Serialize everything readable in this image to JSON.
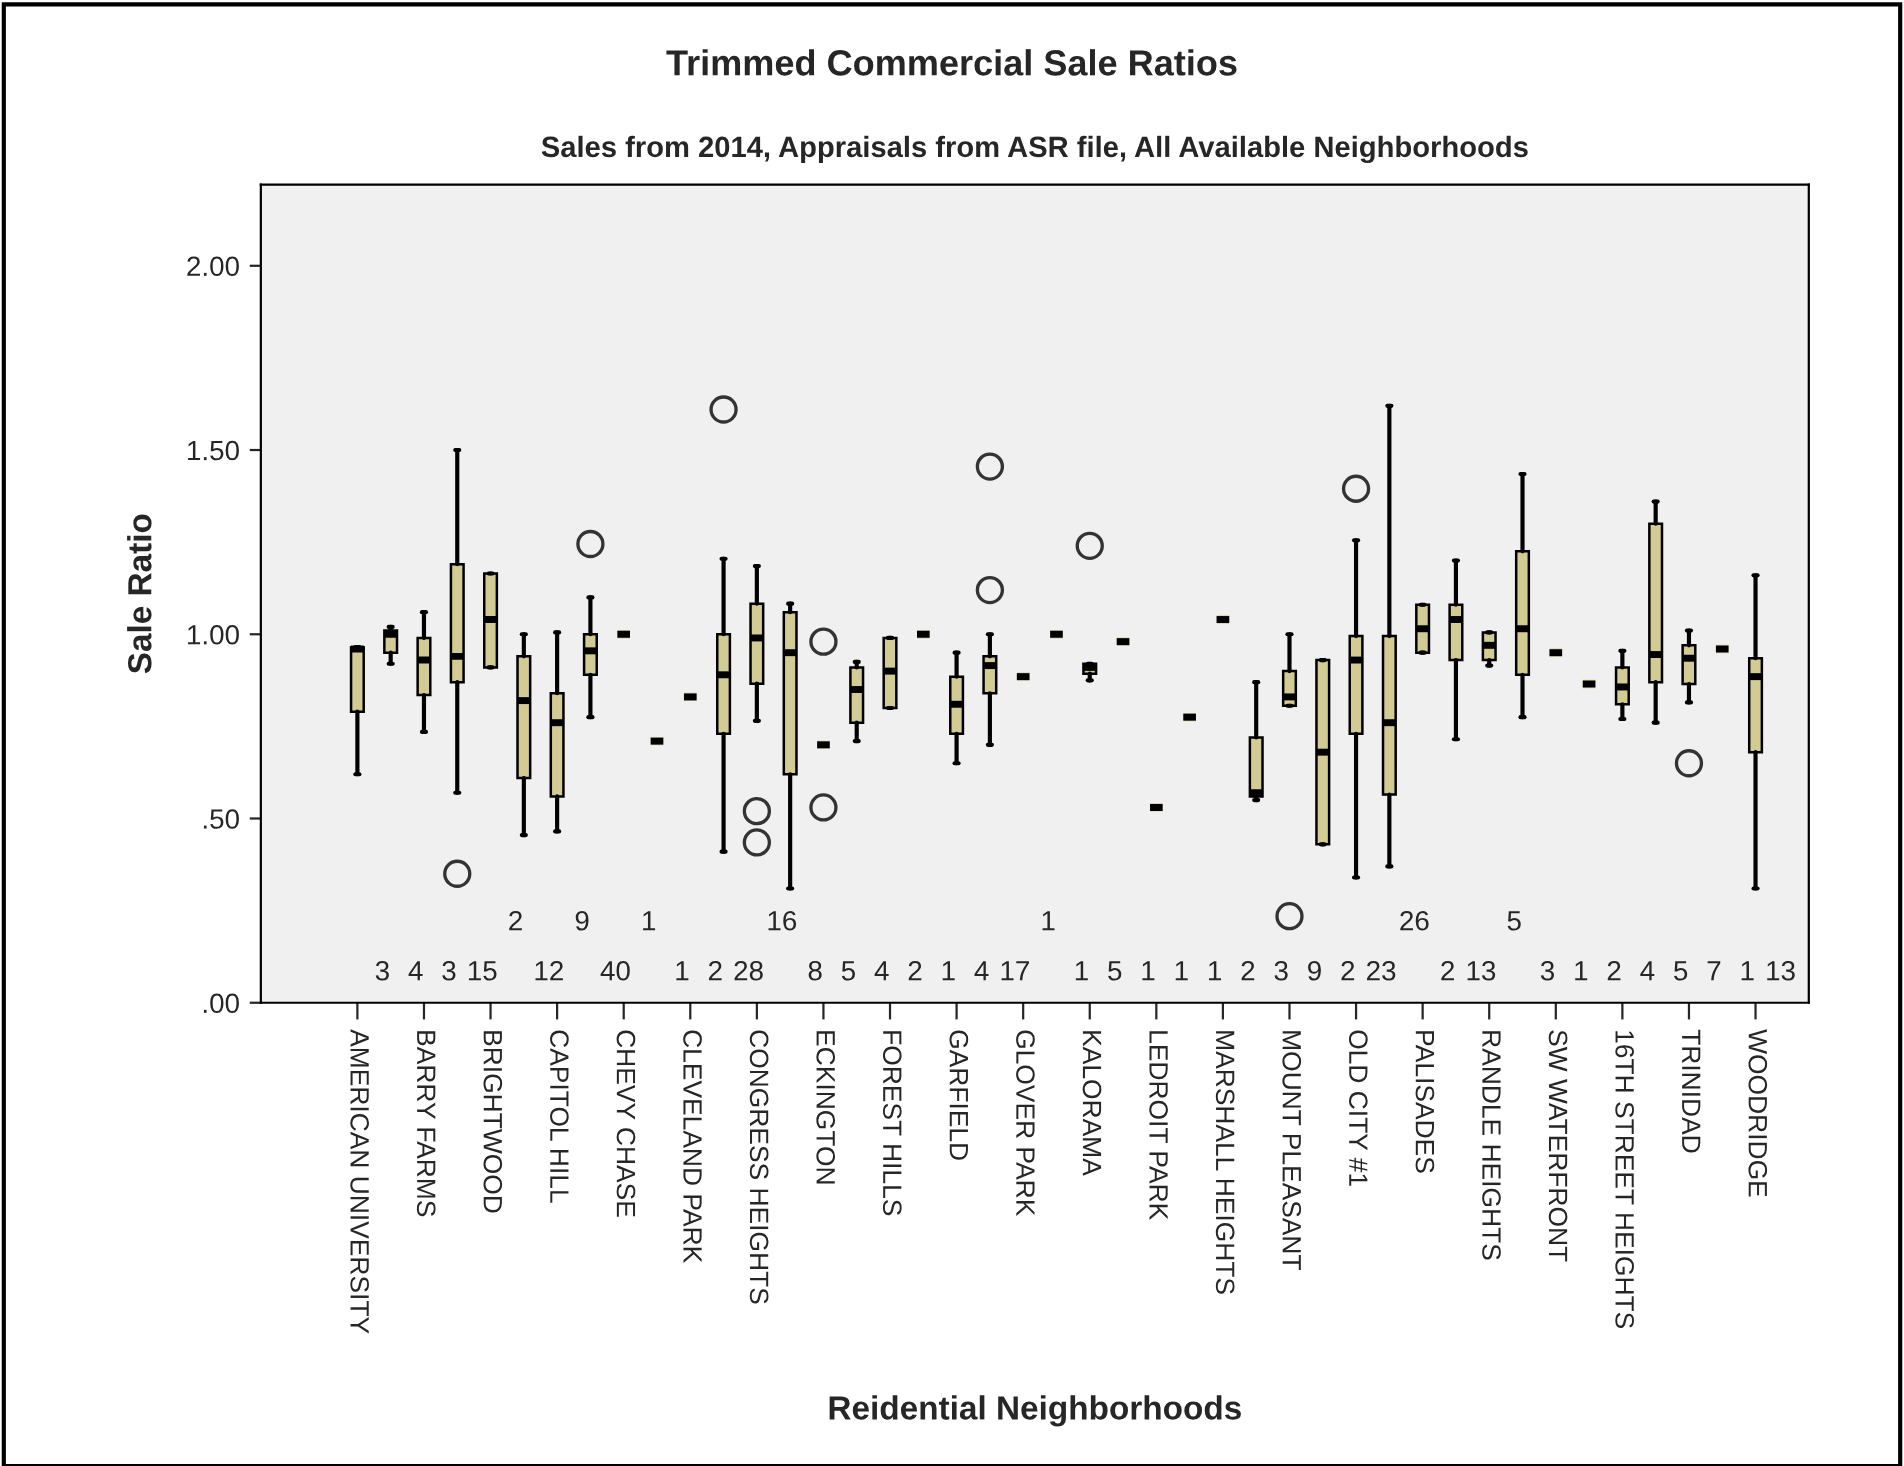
{
  "chart_data": {
    "type": "box",
    "title": "Trimmed Commercial Sale Ratios",
    "subtitle": "Sales from 2014, Appraisals from ASR file, All Available Neighborhoods",
    "xlabel": "Reidential Neighborhoods",
    "ylabel": "Sale Ratio",
    "categories": [
      "AMERICAN UNIVERSITY",
      null,
      "BARRY FARMS",
      null,
      "BRIGHTWOOD",
      null,
      "CAPITOL HILL",
      null,
      "CHEVY CHASE",
      null,
      "CLEVELAND PARK",
      null,
      "CONGRESS HEIGHTS",
      null,
      "ECKINGTON",
      null,
      "FOREST HILLS",
      null,
      "GARFIELD",
      null,
      "GLOVER PARK",
      null,
      "KALORAMA",
      null,
      "LEDROIT PARK",
      null,
      "MARSHALL HEIGHTS",
      null,
      "MOUNT PLEASANT",
      null,
      "OLD CITY #1",
      null,
      "PALISADES",
      null,
      "RANDLE HEIGHTS",
      null,
      "SW WATERFRONT",
      null,
      "16TH STREET HEIGHTS",
      null,
      "TRINIDAD",
      null,
      "WOODRIDGE"
    ],
    "color": "#d2cc94",
    "boxes": [
      {
        "low": 0.62,
        "q1": 0.79,
        "median": 0.96,
        "q3": 0.965,
        "high": 0.965
      },
      {
        "low": 0.92,
        "q1": 0.95,
        "median": 1.0,
        "q3": 1.01,
        "high": 1.02
      },
      {
        "low": 0.735,
        "q1": 0.835,
        "median": 0.93,
        "q3": 0.99,
        "high": 1.06
      },
      {
        "low": 0.57,
        "q1": 0.87,
        "median": 0.94,
        "q3": 1.19,
        "high": 1.5,
        "outliers": [
          0.35
        ]
      },
      {
        "low": 0.91,
        "q1": 0.91,
        "median": 1.04,
        "q3": 1.165,
        "high": 1.165
      },
      {
        "low": 0.455,
        "q1": 0.61,
        "median": 0.82,
        "q3": 0.94,
        "high": 1.0
      },
      {
        "low": 0.465,
        "q1": 0.56,
        "median": 0.76,
        "q3": 0.84,
        "high": 1.005
      },
      {
        "low": 0.775,
        "q1": 0.89,
        "median": 0.955,
        "q3": 1.0,
        "high": 1.1,
        "outliers": [
          1.245
        ]
      },
      {
        "low": 1.0,
        "q1": 1.0,
        "median": 1.0,
        "q3": 1.0,
        "high": 1.0
      },
      {
        "low": 0.71,
        "q1": 0.71,
        "median": 0.71,
        "q3": 0.71,
        "high": 0.71
      },
      {
        "low": 0.83,
        "q1": 0.83,
        "median": 0.83,
        "q3": 0.83,
        "high": 0.83
      },
      {
        "low": 0.41,
        "q1": 0.73,
        "median": 0.89,
        "q3": 1.0,
        "high": 1.205,
        "outliers": [
          1.61
        ]
      },
      {
        "low": 0.765,
        "q1": 0.866,
        "median": 0.99,
        "q3": 1.083,
        "high": 1.185,
        "outliers": [
          0.52,
          0.435
        ]
      },
      {
        "low": 0.31,
        "q1": 0.62,
        "median": 0.95,
        "q3": 1.06,
        "high": 1.083
      },
      {
        "low": 0.7,
        "q1": 0.7,
        "median": 0.7,
        "q3": 0.7,
        "high": 0.7,
        "outliers": [
          0.98,
          0.53
        ]
      },
      {
        "low": 0.71,
        "q1": 0.76,
        "median": 0.85,
        "q3": 0.91,
        "high": 0.925
      },
      {
        "low": 0.8,
        "q1": 0.8,
        "median": 0.9,
        "q3": 0.99,
        "high": 0.99
      },
      {
        "low": 1.0,
        "q1": 1.0,
        "median": 1.0,
        "q3": 1.0,
        "high": 1.0
      },
      {
        "low": 0.65,
        "q1": 0.73,
        "median": 0.81,
        "q3": 0.885,
        "high": 0.95
      },
      {
        "low": 0.7,
        "q1": 0.84,
        "median": 0.915,
        "q3": 0.94,
        "high": 1.0,
        "outliers": [
          1.12,
          1.455
        ]
      },
      {
        "low": 0.885,
        "q1": 0.885,
        "median": 0.885,
        "q3": 0.885,
        "high": 0.885
      },
      {
        "low": 1.0,
        "q1": 1.0,
        "median": 1.0,
        "q3": 1.0,
        "high": 1.0
      },
      {
        "low": 0.875,
        "q1": 0.893,
        "median": 0.91,
        "q3": 0.92,
        "high": 0.92,
        "outliers": [
          1.24
        ]
      },
      {
        "low": 0.98,
        "q1": 0.98,
        "median": 0.98,
        "q3": 0.98,
        "high": 0.98
      },
      {
        "low": 0.53,
        "q1": 0.53,
        "median": 0.53,
        "q3": 0.53,
        "high": 0.53
      },
      {
        "low": 0.775,
        "q1": 0.775,
        "median": 0.775,
        "q3": 0.775,
        "high": 0.775
      },
      {
        "low": 1.04,
        "q1": 1.04,
        "median": 1.04,
        "q3": 1.04,
        "high": 1.04
      },
      {
        "low": 0.55,
        "q1": 0.56,
        "median": 0.57,
        "q3": 0.72,
        "high": 0.87
      },
      {
        "low": 0.806,
        "q1": 0.806,
        "median": 0.83,
        "q3": 0.9,
        "high": 1.0,
        "outliers": [
          0.235
        ]
      },
      {
        "low": 0.43,
        "q1": 0.43,
        "median": 0.68,
        "q3": 0.93,
        "high": 0.93
      },
      {
        "low": 0.34,
        "q1": 0.73,
        "median": 0.93,
        "q3": 0.995,
        "high": 1.255,
        "outliers": [
          1.395
        ]
      },
      {
        "low": 0.37,
        "q1": 0.565,
        "median": 0.76,
        "q3": 0.995,
        "high": 1.62
      },
      {
        "low": 0.95,
        "q1": 0.95,
        "median": 1.015,
        "q3": 1.08,
        "high": 1.08
      },
      {
        "low": 0.715,
        "q1": 0.93,
        "median": 1.04,
        "q3": 1.08,
        "high": 1.2
      },
      {
        "low": 0.915,
        "q1": 0.93,
        "median": 0.97,
        "q3": 1.005,
        "high": 1.005
      },
      {
        "low": 0.775,
        "q1": 0.89,
        "median": 1.015,
        "q3": 1.225,
        "high": 1.435
      },
      {
        "low": 0.95,
        "q1": 0.95,
        "median": 0.95,
        "q3": 0.95,
        "high": 0.95
      },
      {
        "low": 0.865,
        "q1": 0.865,
        "median": 0.865,
        "q3": 0.865,
        "high": 0.865
      },
      {
        "low": 0.77,
        "q1": 0.81,
        "median": 0.857,
        "q3": 0.91,
        "high": 0.955
      },
      {
        "low": 0.76,
        "q1": 0.87,
        "median": 0.945,
        "q3": 1.3,
        "high": 1.36
      },
      {
        "low": 0.815,
        "q1": 0.865,
        "median": 0.935,
        "q3": 0.97,
        "high": 1.01,
        "outliers": [
          0.65
        ]
      },
      {
        "low": 0.96,
        "q1": 0.96,
        "median": 0.96,
        "q3": 0.96,
        "high": 0.96
      },
      {
        "low": 0.31,
        "q1": 0.68,
        "median": 0.885,
        "q3": 0.935,
        "high": 1.16
      }
    ],
    "value_labels": [
      "3",
      "4",
      "3",
      "15",
      "2",
      "12",
      "9",
      "40",
      "1",
      "1",
      "2",
      "28",
      "16",
      "8",
      "5",
      "4",
      "2",
      "1",
      "4",
      "17",
      "1",
      "1",
      "5",
      "1",
      "1",
      "1",
      "2",
      "3",
      "9",
      "2",
      "23",
      "26",
      "2",
      "13",
      "5",
      "3",
      "1",
      "2",
      "4",
      "5",
      "7",
      "1",
      "13"
    ],
    "ylim": [
      0,
      2.22
    ],
    "yticks": [
      {
        "value": 0,
        "label": ".00"
      },
      {
        "value": 0.5,
        "label": ".50"
      },
      {
        "value": 1.0,
        "label": "1.00"
      },
      {
        "value": 1.5,
        "label": "1.50"
      },
      {
        "value": 2.0,
        "label": "2.00"
      }
    ],
    "grid": false
  }
}
